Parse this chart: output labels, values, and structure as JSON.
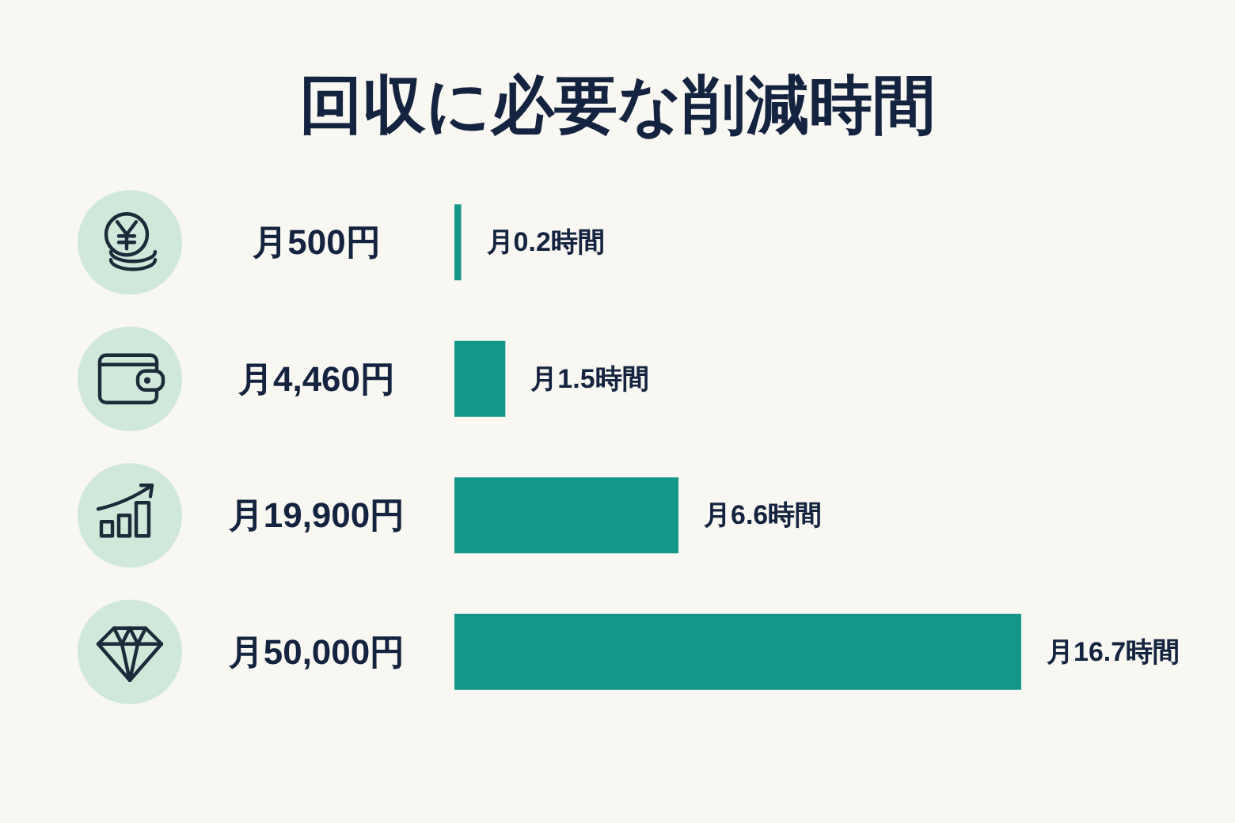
{
  "chart_data": {
    "type": "bar",
    "orientation": "horizontal",
    "title": "回収に必要な削減時間",
    "categories": [
      "月500円",
      "月4,460円",
      "月19,900円",
      "月50,000円"
    ],
    "values": [
      0.2,
      1.5,
      6.6,
      16.7
    ],
    "value_labels": [
      "月0.2時間",
      "月1.5時間",
      "月6.6時間",
      "月16.7時間"
    ],
    "color": "#14968a"
  }
}
